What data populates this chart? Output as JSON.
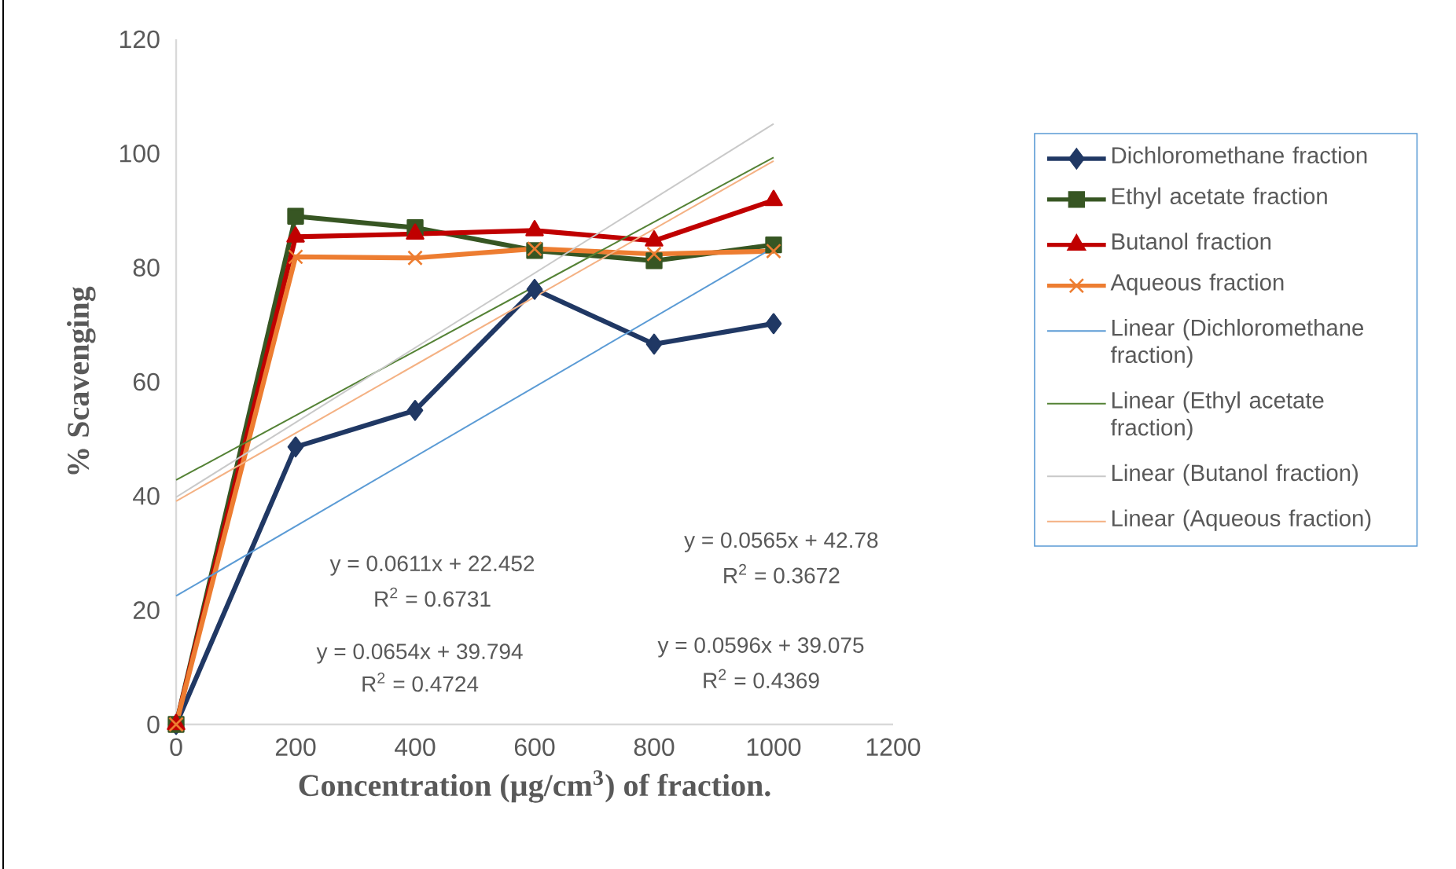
{
  "chart_data": {
    "type": "line",
    "xlabel": "Concentration (µg/cm$^{3}$) of fraction.",
    "ylabel": "% Scavenging",
    "xlim": [
      0,
      1200
    ],
    "xticks": [
      0,
      200,
      400,
      600,
      800,
      1000,
      1200
    ],
    "ylim": [
      0,
      120
    ],
    "yticks": [
      0,
      20,
      40,
      60,
      80,
      100,
      120
    ],
    "grid": false,
    "legend": "right",
    "series": [
      {
        "name": "Dichloromethane fraction",
        "color": "#203864",
        "marker": "diamond",
        "x": [
          0,
          200,
          400,
          600,
          800,
          1000
        ],
        "values": [
          0,
          48.6,
          55.0,
          76.2,
          66.6,
          70.2
        ]
      },
      {
        "name": "Ethyl acetate fraction",
        "color": "#375623",
        "marker": "square",
        "x": [
          0,
          200,
          400,
          600,
          800,
          1000
        ],
        "values": [
          0,
          89.0,
          87.0,
          83.0,
          81.2,
          84.0
        ]
      },
      {
        "name": "Butanol fraction",
        "color": "#c00000",
        "marker": "triangle",
        "x": [
          0,
          200,
          400,
          600,
          800,
          1000
        ],
        "values": [
          0,
          85.4,
          85.9,
          86.5,
          84.7,
          91.8
        ]
      },
      {
        "name": "Aqueous fraction",
        "color": "#ed7d31",
        "marker": "cross",
        "x": [
          0,
          200,
          400,
          600,
          800,
          1000
        ],
        "values": [
          0,
          81.9,
          81.7,
          83.3,
          82.4,
          82.9
        ]
      },
      {
        "name": "Linear (Dichloromethane fraction)",
        "color": "#5b9bd5",
        "marker": "none",
        "x": [
          0,
          1000
        ],
        "values": [
          22.5,
          83.5
        ]
      },
      {
        "name": "Linear (Ethyl acetate fraction)",
        "color": "#548235",
        "marker": "none",
        "x": [
          0,
          1000
        ],
        "values": [
          42.8,
          99.3
        ]
      },
      {
        "name": "Linear (Butanol fraction)",
        "color": "#c9c9c9",
        "marker": "none",
        "x": [
          0,
          1000
        ],
        "values": [
          39.8,
          105.2
        ]
      },
      {
        "name": "Linear (Aqueous fraction)",
        "color": "#f4b183",
        "marker": "none",
        "x": [
          0,
          1000
        ],
        "values": [
          39.1,
          98.7
        ]
      }
    ],
    "annotations": [
      "y = 0.0611x + 22.452",
      "R$^{2}$ = 0.6731",
      "y = 0.0565x + 42.78",
      "R$^{2}$ = 0.3672",
      "y = 0.0654x + 39.794",
      "R$^{2}$ = 0.4724",
      "y = 0.0596x + 39.075",
      "R$^{2}$ = 0.4369"
    ]
  }
}
